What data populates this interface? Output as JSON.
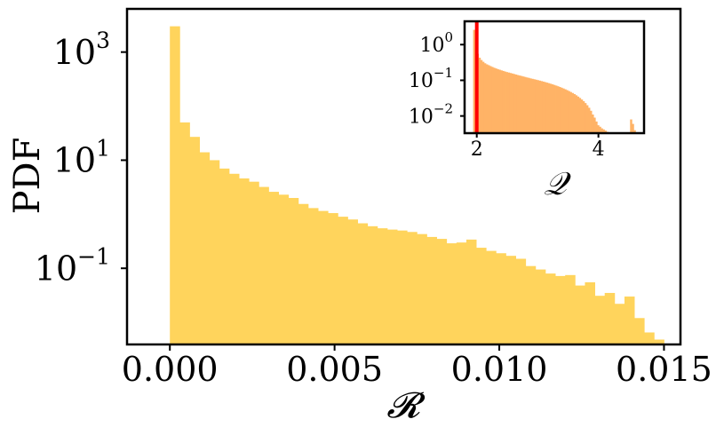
{
  "colors": {
    "main_bars": "#FFD45C",
    "inset_bars": "#FFB366",
    "inset_marker": "#FF0000",
    "axes": "#000000"
  },
  "chart_data": [
    {
      "type": "bar",
      "role": "main-histogram",
      "xlabel": "𝓡",
      "ylabel": "PDF",
      "yscale": "log",
      "xlim": [
        -0.0013,
        0.0155
      ],
      "ylim": [
        0.0039,
        6300
      ],
      "x_ticks": [
        0.0,
        0.005,
        0.01,
        0.015
      ],
      "x_tick_labels": [
        "0.000",
        "0.005",
        "0.010",
        "0.015"
      ],
      "y_ticks": [
        1000,
        10,
        0.1
      ],
      "y_tick_labels": [
        {
          "base": "10",
          "exp": "3"
        },
        {
          "base": "10",
          "exp": "1"
        },
        {
          "base": "10",
          "exp": "−1"
        }
      ],
      "bin_edges_start": 0.0,
      "bin_width": 0.0003,
      "values": [
        3000,
        50,
        27,
        14,
        10,
        7,
        5.6,
        4.6,
        4.0,
        3.2,
        2.6,
        2.3,
        2.0,
        1.55,
        1.3,
        1.15,
        1.05,
        0.9,
        0.8,
        0.68,
        0.6,
        0.55,
        0.52,
        0.5,
        0.47,
        0.43,
        0.38,
        0.35,
        0.29,
        0.3,
        0.34,
        0.24,
        0.21,
        0.19,
        0.17,
        0.15,
        0.11,
        0.095,
        0.08,
        0.072,
        0.075,
        0.048,
        0.055,
        0.031,
        0.035,
        0.022,
        0.03,
        0.012,
        0.0065,
        0.0048
      ],
      "grid": false,
      "legend": "none"
    },
    {
      "type": "bar",
      "role": "inset-histogram",
      "xlabel": "𝒬",
      "yscale": "log",
      "xlim": [
        1.8,
        4.75
      ],
      "ylim": [
        0.0033,
        4.5
      ],
      "x_ticks": [
        2,
        4
      ],
      "x_tick_labels": [
        "2",
        "4"
      ],
      "y_ticks": [
        1,
        0.1,
        0.01
      ],
      "y_tick_labels": [
        {
          "base": "10",
          "exp": "0"
        },
        {
          "base": "10",
          "exp": "−1"
        },
        {
          "base": "10",
          "exp": "−2"
        }
      ],
      "marker_line_x": 2.0,
      "bin_edges_start": 1.94,
      "bin_width": 0.03,
      "values": [
        2.6,
        0.8,
        0.55,
        0.43,
        0.37,
        0.33,
        0.3,
        0.28,
        0.265,
        0.25,
        0.237,
        0.225,
        0.215,
        0.206,
        0.198,
        0.19,
        0.183,
        0.176,
        0.17,
        0.165,
        0.16,
        0.155,
        0.15,
        0.145,
        0.14,
        0.136,
        0.132,
        0.128,
        0.124,
        0.12,
        0.117,
        0.113,
        0.11,
        0.107,
        0.104,
        0.101,
        0.098,
        0.095,
        0.092,
        0.089,
        0.086,
        0.083,
        0.08,
        0.077,
        0.074,
        0.071,
        0.068,
        0.065,
        0.062,
        0.059,
        0.056,
        0.053,
        0.05,
        0.047,
        0.044,
        0.041,
        0.038,
        0.035,
        0.032,
        0.029,
        0.026,
        0.023,
        0.02,
        0.017,
        0.014,
        0.011,
        0.009,
        0.007,
        0.0055,
        0.005,
        0.0045,
        0.0042,
        0.0039,
        0.0036,
        0.0032,
        0.0028,
        0.0021,
        0.0021,
        0.0017,
        0.0013,
        0.0007,
        0.0004,
        0.0006,
        0.0005,
        0.0012,
        0.0015,
        0.008,
        0.006,
        0.004
      ],
      "grid": false,
      "legend": "none"
    }
  ]
}
